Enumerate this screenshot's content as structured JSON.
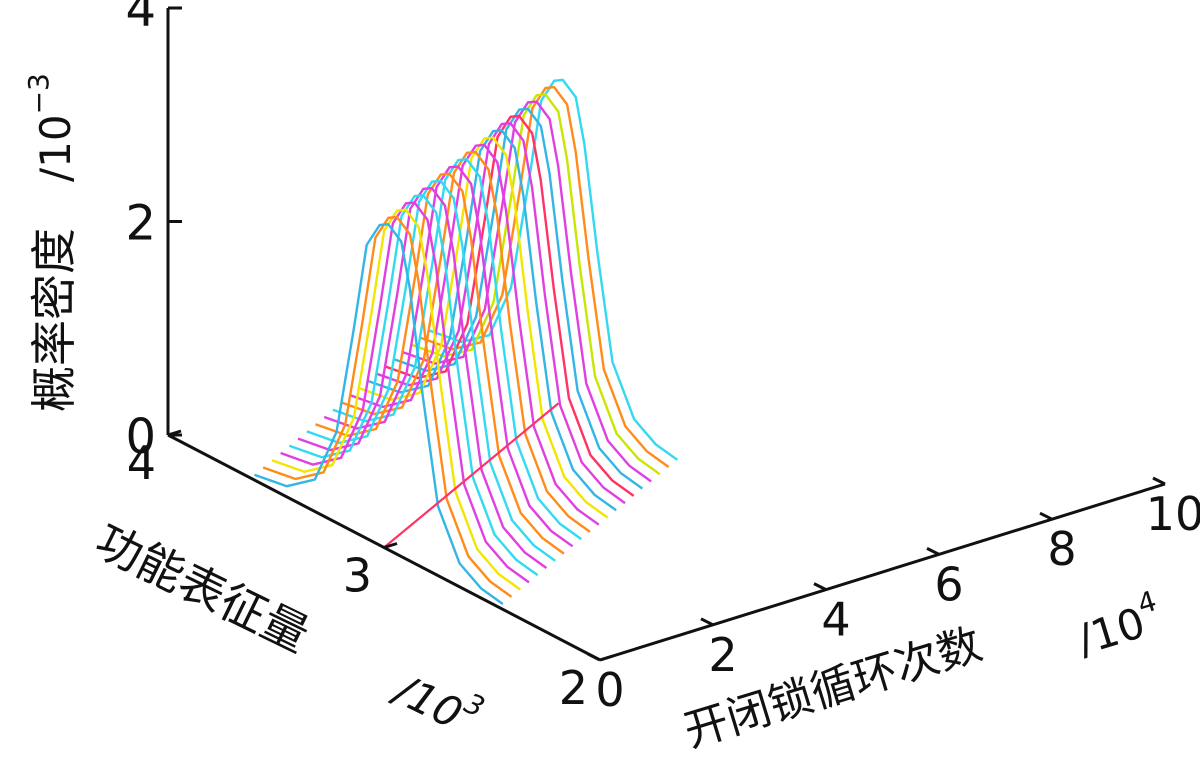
{
  "chart_data": {
    "type": "waterfall-3d-line",
    "title": "",
    "zlabel": "概率密度",
    "z_unit": "/10",
    "z_exponent": "−3",
    "z_ticks": [
      0,
      2,
      4
    ],
    "zlim": [
      0,
      4
    ],
    "ylabel": "功能表征量",
    "y_unit": "/10",
    "y_exponent": "3",
    "y_ticks": [
      2,
      3,
      4
    ],
    "ylim": [
      2,
      4
    ],
    "xlabel": "开闭锁循环次数",
    "x_unit": "/10",
    "x_exponent": "4",
    "x_ticks": [
      0,
      2,
      4,
      6,
      8,
      10
    ],
    "xlim": [
      0,
      10
    ],
    "grid": false,
    "legend": "none",
    "peak_x": [
      0,
      0.25,
      0.5,
      0.75,
      1,
      1.25,
      1.5,
      1.75,
      2,
      2.25,
      2.5,
      2.75,
      3,
      3.25,
      3.5,
      3.75,
      4,
      4.25,
      4.5,
      4.75,
      5
    ],
    "peak_colors": [
      "#33b5e5",
      "#ff8c1a",
      "#f2e600",
      "#e040e0",
      "#33d9f0",
      "#e040e0",
      "#33d9f0",
      "#ff8c1a",
      "#e040e0",
      "#33d9f0",
      "#ff8c1a",
      "#e040e0",
      "#f2e600",
      "#33b5e5",
      "#e040e0",
      "#ff3366",
      "#33b5e5",
      "#e040e0",
      "#c9e600",
      "#ff8c1a",
      "#33d9f0"
    ],
    "series": [
      {
        "name": "",
        "color": "#33b5e5",
        "x": 0.0,
        "peak_y": 3.02,
        "y": [
          2.5,
          2.6,
          2.7,
          2.8,
          2.9,
          3.0,
          3.05,
          3.1,
          3.2,
          3.3,
          3.4,
          3.5,
          3.6
        ],
        "density": [
          0.05,
          0.1,
          0.3,
          1.2,
          2.6,
          3.05,
          2.9,
          1.6,
          0.5,
          0.15,
          0.08,
          0.05,
          0.04
        ]
      },
      {
        "name": "",
        "color": "#ff8c1a",
        "x": 0.25,
        "peak_y": 3.03,
        "y": [
          2.5,
          2.6,
          2.7,
          2.8,
          2.9,
          3.0,
          3.05,
          3.1,
          3.2,
          3.3,
          3.4,
          3.5,
          3.6
        ],
        "density": [
          0.05,
          0.1,
          0.3,
          1.2,
          2.6,
          3.0,
          2.9,
          1.6,
          0.5,
          0.15,
          0.08,
          0.05,
          0.04
        ]
      },
      {
        "name": "",
        "color": "#e040e0",
        "x": 0.5,
        "peak_y": 3.04,
        "y": [
          2.5,
          2.6,
          2.7,
          2.8,
          2.9,
          3.0,
          3.05,
          3.1,
          3.2,
          3.3,
          3.4,
          3.5,
          3.6
        ],
        "density": [
          0.05,
          0.1,
          0.3,
          1.2,
          2.6,
          2.98,
          2.9,
          1.6,
          0.5,
          0.15,
          0.08,
          0.05,
          0.04
        ]
      },
      {
        "name": "",
        "color": "#ff3366",
        "x": 5.0,
        "peak_y": 3.25,
        "y": [
          2.7,
          2.8,
          2.9,
          3.0,
          3.1,
          3.2,
          3.25,
          3.3,
          3.4,
          3.5,
          3.6,
          3.7,
          3.8
        ],
        "density": [
          0.05,
          0.1,
          0.3,
          1.2,
          2.5,
          2.9,
          2.8,
          1.5,
          0.5,
          0.15,
          0.08,
          0.05,
          0.04
        ]
      },
      {
        "name": "",
        "color": "#33d9f0",
        "x": 10.0,
        "peak_y": 3.5,
        "y": [
          2.95,
          3.05,
          3.15,
          3.25,
          3.35,
          3.45,
          3.5,
          3.55,
          3.65,
          3.75,
          3.85,
          3.95,
          4.0
        ],
        "density": [
          0.05,
          0.1,
          0.3,
          1.2,
          2.5,
          2.95,
          2.85,
          1.5,
          0.5,
          0.15,
          0.08,
          0.05,
          0.04
        ]
      }
    ]
  }
}
